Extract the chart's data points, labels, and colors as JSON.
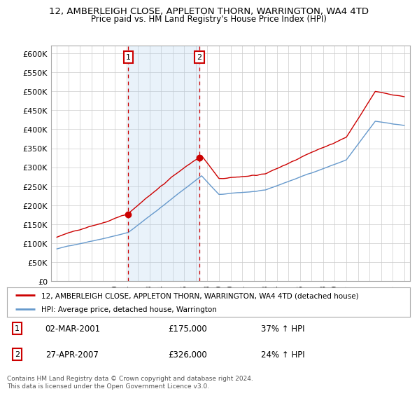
{
  "title": "12, AMBERLEIGH CLOSE, APPLETON THORN, WARRINGTON, WA4 4TD",
  "subtitle": "Price paid vs. HM Land Registry's House Price Index (HPI)",
  "line1_label": "12, AMBERLEIGH CLOSE, APPLETON THORN, WARRINGTON, WA4 4TD (detached house)",
  "line2_label": "HPI: Average price, detached house, Warrington",
  "sale1_date": "02-MAR-2001",
  "sale1_price": 175000,
  "sale1_hpi_pct": "37% ↑ HPI",
  "sale2_date": "27-APR-2007",
  "sale2_price": 326000,
  "sale2_hpi_pct": "24% ↑ HPI",
  "footer": "Contains HM Land Registry data © Crown copyright and database right 2024.\nThis data is licensed under the Open Government Licence v3.0.",
  "ylim": [
    0,
    620000
  ],
  "yticks": [
    0,
    50000,
    100000,
    150000,
    200000,
    250000,
    300000,
    350000,
    400000,
    450000,
    500000,
    550000,
    600000
  ],
  "line1_color": "#cc0000",
  "line2_color": "#6699cc",
  "sale1_year": 2001.17,
  "sale2_year": 2007.32,
  "background_color": "#ffffff",
  "grid_color": "#cccccc",
  "shade_color": "#ddeeff"
}
